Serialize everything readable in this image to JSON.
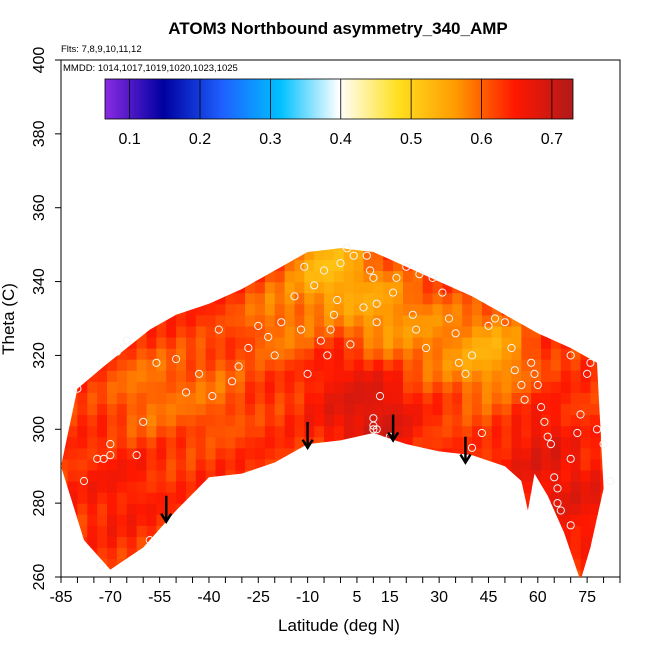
{
  "chart_data": {
    "type": "heatmap",
    "title": "ATOM3 Northbound asymmetry_340_AMP",
    "flights_text": "Flts: 7,8,9,10,11,12",
    "mmdd_text": "MMDD: 1014,1017,1019,1020,1023,1025",
    "xlabel": "Latitude (deg N)",
    "ylabel": "Theta (C)",
    "xlim": [
      -85,
      85
    ],
    "ylim": [
      260,
      400
    ],
    "x_ticks": [
      -85,
      -70,
      -55,
      -40,
      -25,
      -10,
      5,
      15,
      30,
      45,
      60,
      75
    ],
    "x_minor_step": 5,
    "y_ticks": [
      260,
      280,
      300,
      320,
      340,
      360,
      380,
      400
    ],
    "colorbar": {
      "range": [
        0.065,
        0.73
      ],
      "ticks": [
        0.1,
        0.2,
        0.3,
        0.4,
        0.5,
        0.6,
        0.7
      ],
      "tick_labels": [
        "0.1",
        "0.2",
        "0.3",
        "0.4",
        "0.5",
        "0.6",
        "0.7"
      ],
      "colors": [
        "#8a2be2",
        "#0000a0",
        "#1e60ff",
        "#00c0ff",
        "#ffffff",
        "#ffe020",
        "#ff9a00",
        "#ff1800",
        "#b01a1a"
      ]
    },
    "field_top_boundary": [
      [
        -80,
        311
      ],
      [
        -72,
        317
      ],
      [
        -65,
        322
      ],
      [
        -58,
        327
      ],
      [
        -50,
        331
      ],
      [
        -40,
        334
      ],
      [
        -30,
        338
      ],
      [
        -20,
        343
      ],
      [
        -10,
        348
      ],
      [
        0,
        349
      ],
      [
        10,
        348
      ],
      [
        20,
        344
      ],
      [
        30,
        340
      ],
      [
        40,
        336
      ],
      [
        50,
        331
      ],
      [
        60,
        326
      ],
      [
        70,
        322
      ],
      [
        78,
        318
      ]
    ],
    "field_bottom_boundary": [
      [
        -85,
        290
      ],
      [
        -78,
        270
      ],
      [
        -70,
        262
      ],
      [
        -60,
        268
      ],
      [
        -50,
        278
      ],
      [
        -40,
        287
      ],
      [
        -30,
        288
      ],
      [
        -20,
        291
      ],
      [
        -10,
        296
      ],
      [
        0,
        297
      ],
      [
        10,
        299
      ],
      [
        20,
        296
      ],
      [
        30,
        294
      ],
      [
        40,
        293
      ],
      [
        50,
        290
      ],
      [
        55,
        286
      ],
      [
        57,
        278
      ],
      [
        59,
        288
      ],
      [
        63,
        282
      ],
      [
        68,
        272
      ],
      [
        73,
        259
      ],
      [
        76,
        268
      ],
      [
        80,
        284
      ]
    ],
    "field_hotspots": [
      {
        "lat": -68,
        "theta": 283,
        "value": 0.66
      },
      {
        "lat": -58,
        "theta": 310,
        "value": 0.57
      },
      {
        "lat": -40,
        "theta": 310,
        "value": 0.58
      },
      {
        "lat": -18,
        "theta": 330,
        "value": 0.56
      },
      {
        "lat": -3,
        "theta": 343,
        "value": 0.48
      },
      {
        "lat": 12,
        "theta": 332,
        "value": 0.52
      },
      {
        "lat": 28,
        "theta": 325,
        "value": 0.55
      },
      {
        "lat": 45,
        "theta": 320,
        "value": 0.5
      },
      {
        "lat": 50,
        "theta": 305,
        "value": 0.6
      },
      {
        "lat": 10,
        "theta": 303,
        "value": 0.72
      },
      {
        "lat": 2,
        "theta": 309,
        "value": 0.68
      },
      {
        "lat": 58,
        "theta": 296,
        "value": 0.7
      },
      {
        "lat": 70,
        "theta": 282,
        "value": 0.69
      }
    ],
    "field_base_value": 0.63,
    "sample_points": [
      [
        -80,
        311
      ],
      [
        -78,
        286
      ],
      [
        -74,
        292
      ],
      [
        -72,
        292
      ],
      [
        -70,
        293
      ],
      [
        -73,
        263
      ],
      [
        -70,
        296
      ],
      [
        -68,
        321
      ],
      [
        -65,
        324
      ],
      [
        -60,
        302
      ],
      [
        -62,
        293
      ],
      [
        -58,
        270
      ],
      [
        -56,
        318
      ],
      [
        -50,
        319
      ],
      [
        -47,
        310
      ],
      [
        -43,
        315
      ],
      [
        -39,
        309
      ],
      [
        -37,
        327
      ],
      [
        -33,
        313
      ],
      [
        -31,
        317
      ],
      [
        -28,
        322
      ],
      [
        -25,
        328
      ],
      [
        -22,
        325
      ],
      [
        -20,
        320
      ],
      [
        -18,
        329
      ],
      [
        -14,
        336
      ],
      [
        -12,
        327
      ],
      [
        -11,
        344
      ],
      [
        -8,
        339
      ],
      [
        -5,
        343
      ],
      [
        -3,
        327
      ],
      [
        -2,
        331
      ],
      [
        0,
        345
      ],
      [
        -1,
        335
      ],
      [
        2,
        349
      ],
      [
        4,
        347
      ],
      [
        -4,
        320
      ],
      [
        -6,
        324
      ],
      [
        -10,
        315
      ],
      [
        3,
        323
      ],
      [
        7,
        333
      ],
      [
        8,
        347
      ],
      [
        9,
        343
      ],
      [
        10,
        341
      ],
      [
        11,
        334
      ],
      [
        11,
        329
      ],
      [
        12,
        309
      ],
      [
        10,
        303
      ],
      [
        10,
        301
      ],
      [
        11,
        300
      ],
      [
        10,
        300
      ],
      [
        15,
        298
      ],
      [
        16,
        337
      ],
      [
        17,
        341
      ],
      [
        20,
        344
      ],
      [
        22,
        331
      ],
      [
        23,
        327
      ],
      [
        24,
        342
      ],
      [
        26,
        322
      ],
      [
        28,
        341
      ],
      [
        31,
        337
      ],
      [
        33,
        330
      ],
      [
        35,
        326
      ],
      [
        36,
        318
      ],
      [
        38,
        315
      ],
      [
        40,
        320
      ],
      [
        40,
        295
      ],
      [
        43,
        299
      ],
      [
        45,
        328
      ],
      [
        47,
        330
      ],
      [
        50,
        329
      ],
      [
        52,
        322
      ],
      [
        53,
        316
      ],
      [
        55,
        312
      ],
      [
        56,
        308
      ],
      [
        58,
        318
      ],
      [
        59,
        315
      ],
      [
        60,
        312
      ],
      [
        61,
        306
      ],
      [
        62,
        302
      ],
      [
        63,
        298
      ],
      [
        64,
        296
      ],
      [
        65,
        287
      ],
      [
        66,
        284
      ],
      [
        66,
        280
      ],
      [
        67,
        278
      ],
      [
        70,
        274
      ],
      [
        70,
        292
      ],
      [
        72,
        299
      ],
      [
        73,
        304
      ],
      [
        75,
        315
      ],
      [
        76,
        318
      ],
      [
        78,
        300
      ],
      [
        80,
        296
      ],
      [
        82,
        286
      ],
      [
        70,
        320
      ]
    ],
    "arrows": [
      {
        "lat": -53,
        "theta_start": 282,
        "theta_end": 275
      },
      {
        "lat": -10,
        "theta_start": 302,
        "theta_end": 295
      },
      {
        "lat": 16,
        "theta_start": 304,
        "theta_end": 297
      },
      {
        "lat": 38,
        "theta_start": 298,
        "theta_end": 291
      }
    ]
  }
}
